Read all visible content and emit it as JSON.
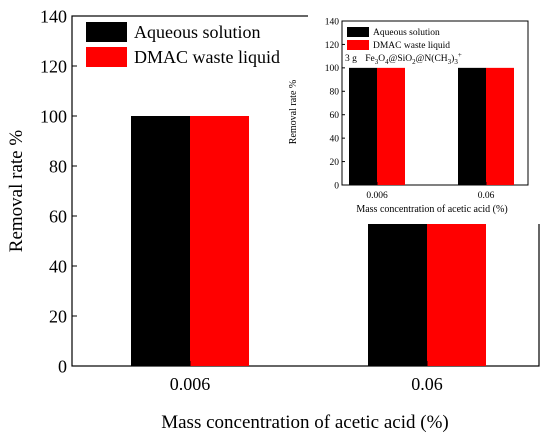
{
  "chart_data": [
    {
      "type": "bar",
      "title": "",
      "xlabel": "Mass concentration of acetic acid (%)",
      "ylabel": "Removal rate %",
      "categories": [
        "0.006",
        "0.06"
      ],
      "series": [
        {
          "name": "Aqueous solution",
          "color": "#000000",
          "values": [
            100,
            60
          ]
        },
        {
          "name": "DMAC waste liquid",
          "color": "#ff0000",
          "values": [
            100,
            59
          ]
        }
      ],
      "ylim": [
        0,
        140
      ],
      "yticks": [
        "0",
        "20",
        "40",
        "60",
        "80",
        "100",
        "120",
        "140"
      ],
      "legend": "top-left",
      "grid": false
    },
    {
      "type": "bar",
      "title": "",
      "annotation": {
        "prefix": "3 g",
        "formula": "Fe3O4@SiO2@N(CH3)3+"
      },
      "xlabel": "Mass concentration of acetic acid (%)",
      "ylabel": "Removal rate %",
      "categories": [
        "0.006",
        "0.06"
      ],
      "series": [
        {
          "name": "Aqueous solution",
          "color": "#000000",
          "values": [
            100,
            100
          ]
        },
        {
          "name": "DMAC waste liquid",
          "color": "#ff0000",
          "values": [
            100,
            100
          ]
        }
      ],
      "ylim": [
        0,
        140
      ],
      "yticks": [
        "0",
        "20",
        "40",
        "60",
        "80",
        "100",
        "120",
        "140"
      ],
      "legend": "top-left",
      "grid": false
    }
  ]
}
